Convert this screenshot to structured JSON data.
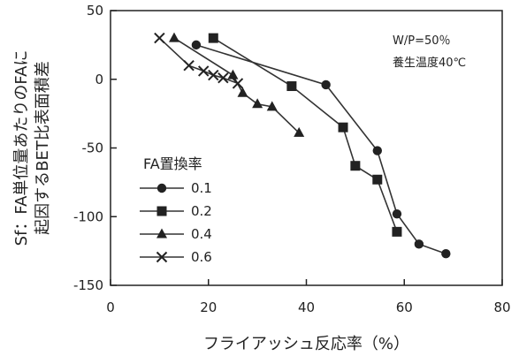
{
  "chart_data": {
    "type": "line",
    "xlabel": "フライアッシュ反応率（%）",
    "ylabel_line1": "Sf：FA単位量あたりのFAに",
    "ylabel_line2": "起因するBET比表面積差",
    "xlim": [
      0,
      80
    ],
    "ylim": [
      -150,
      50
    ],
    "x_ticks": [
      0,
      20,
      40,
      60,
      80
    ],
    "y_ticks": [
      50,
      0,
      -50,
      -100,
      -150
    ],
    "grid": false,
    "annotations": [
      "W/P=50％",
      "養生温度40℃"
    ],
    "legend": {
      "title": "FA置換率",
      "placement": "left-center"
    },
    "series": [
      {
        "name": "0.1",
        "marker": "circle",
        "points": [
          [
            17.5,
            25
          ],
          [
            44,
            -4
          ],
          [
            54.5,
            -52
          ],
          [
            58.5,
            -98
          ],
          [
            63,
            -120
          ],
          [
            68.5,
            -127
          ]
        ]
      },
      {
        "name": "0.2",
        "marker": "square",
        "points": [
          [
            21,
            30
          ],
          [
            37,
            -5
          ],
          [
            47.5,
            -35
          ],
          [
            50,
            -63
          ],
          [
            54.5,
            -73
          ],
          [
            58.5,
            -111
          ]
        ]
      },
      {
        "name": "0.4",
        "marker": "triangle",
        "points": [
          [
            13,
            30
          ],
          [
            25,
            3
          ],
          [
            27,
            -10
          ],
          [
            30,
            -18
          ],
          [
            33,
            -20
          ],
          [
            38.5,
            -39
          ]
        ]
      },
      {
        "name": "0.6",
        "marker": "x",
        "points": [
          [
            10,
            30
          ],
          [
            16,
            10
          ],
          [
            19,
            6
          ],
          [
            21,
            3
          ],
          [
            23,
            1
          ],
          [
            26,
            -3
          ]
        ]
      }
    ]
  }
}
